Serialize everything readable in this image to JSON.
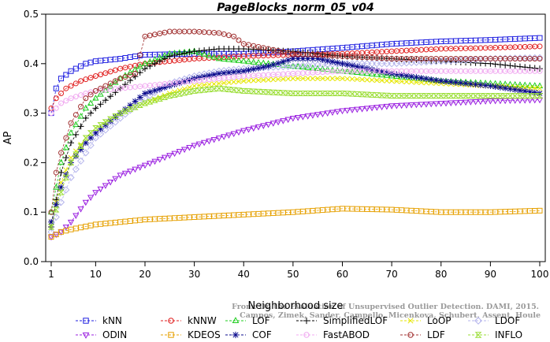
{
  "chart_data": {
    "type": "line",
    "title": "PageBlocks_norm_05_v04",
    "xlabel": "Neighborhood size",
    "ylabel": "AP",
    "xlim": [
      1,
      100
    ],
    "ylim": [
      0,
      0.5
    ],
    "xticks": [
      1,
      10,
      20,
      30,
      40,
      50,
      60,
      70,
      80,
      90,
      100
    ],
    "yticks": [
      0.0,
      0.1,
      0.2,
      0.3,
      0.4,
      0.5
    ],
    "grid": false,
    "legend_position": "bottom",
    "watermark": [
      "From: On the Evaluation of Unsupervised Outlier Detection. DAMI, 2015.",
      "Campos, Zimek, Sander, Campello, Micenkova, Schubert, Assent, Houle"
    ],
    "series": [
      {
        "name": "kNN",
        "color": "#1f1fe0",
        "marker": "square",
        "points": [
          [
            1,
            0.3
          ],
          [
            2,
            0.35
          ],
          [
            3,
            0.37
          ],
          [
            5,
            0.385
          ],
          [
            8,
            0.4
          ],
          [
            10,
            0.405
          ],
          [
            15,
            0.41
          ],
          [
            20,
            0.418
          ],
          [
            30,
            0.42
          ],
          [
            40,
            0.42
          ],
          [
            50,
            0.425
          ],
          [
            60,
            0.432
          ],
          [
            70,
            0.44
          ],
          [
            80,
            0.445
          ],
          [
            90,
            0.448
          ],
          [
            100,
            0.452
          ]
        ]
      },
      {
        "name": "kNNW",
        "color": "#e01f1f",
        "marker": "circle",
        "points": [
          [
            1,
            0.31
          ],
          [
            2,
            0.33
          ],
          [
            4,
            0.35
          ],
          [
            7,
            0.365
          ],
          [
            10,
            0.375
          ],
          [
            15,
            0.39
          ],
          [
            20,
            0.4
          ],
          [
            30,
            0.41
          ],
          [
            40,
            0.415
          ],
          [
            50,
            0.418
          ],
          [
            60,
            0.42
          ],
          [
            70,
            0.425
          ],
          [
            80,
            0.43
          ],
          [
            90,
            0.432
          ],
          [
            100,
            0.435
          ]
        ]
      },
      {
        "name": "LOF",
        "color": "#1fcc1f",
        "marker": "triangle",
        "points": [
          [
            1,
            0.1
          ],
          [
            3,
            0.2
          ],
          [
            5,
            0.26
          ],
          [
            8,
            0.31
          ],
          [
            10,
            0.33
          ],
          [
            15,
            0.37
          ],
          [
            20,
            0.4
          ],
          [
            25,
            0.42
          ],
          [
            30,
            0.425
          ],
          [
            35,
            0.41
          ],
          [
            40,
            0.405
          ],
          [
            50,
            0.395
          ],
          [
            60,
            0.385
          ],
          [
            70,
            0.375
          ],
          [
            80,
            0.365
          ],
          [
            90,
            0.36
          ],
          [
            100,
            0.355
          ]
        ]
      },
      {
        "name": "SimplifiedLOF",
        "color": "#000000",
        "marker": "plus",
        "points": [
          [
            1,
            0.07
          ],
          [
            3,
            0.18
          ],
          [
            5,
            0.24
          ],
          [
            8,
            0.29
          ],
          [
            10,
            0.31
          ],
          [
            15,
            0.35
          ],
          [
            20,
            0.39
          ],
          [
            25,
            0.415
          ],
          [
            30,
            0.425
          ],
          [
            35,
            0.43
          ],
          [
            40,
            0.43
          ],
          [
            50,
            0.425
          ],
          [
            60,
            0.415
          ],
          [
            70,
            0.41
          ],
          [
            80,
            0.405
          ],
          [
            90,
            0.4
          ],
          [
            100,
            0.39
          ]
        ]
      },
      {
        "name": "LoOP",
        "color": "#e6e600",
        "marker": "x",
        "points": [
          [
            1,
            0.08
          ],
          [
            3,
            0.16
          ],
          [
            5,
            0.21
          ],
          [
            8,
            0.25
          ],
          [
            10,
            0.27
          ],
          [
            15,
            0.3
          ],
          [
            20,
            0.32
          ],
          [
            25,
            0.34
          ],
          [
            30,
            0.355
          ],
          [
            35,
            0.36
          ],
          [
            40,
            0.365
          ],
          [
            50,
            0.37
          ],
          [
            60,
            0.37
          ],
          [
            70,
            0.365
          ],
          [
            80,
            0.36
          ],
          [
            90,
            0.355
          ],
          [
            100,
            0.35
          ]
        ]
      },
      {
        "name": "LDOF",
        "color": "#b4b4ec",
        "marker": "diamond",
        "points": [
          [
            1,
            0.06
          ],
          [
            3,
            0.12
          ],
          [
            5,
            0.17
          ],
          [
            8,
            0.22
          ],
          [
            10,
            0.25
          ],
          [
            15,
            0.29
          ],
          [
            20,
            0.33
          ],
          [
            25,
            0.36
          ],
          [
            30,
            0.375
          ],
          [
            35,
            0.385
          ],
          [
            40,
            0.39
          ],
          [
            50,
            0.395
          ],
          [
            60,
            0.4
          ],
          [
            70,
            0.4
          ],
          [
            80,
            0.405
          ],
          [
            90,
            0.41
          ],
          [
            100,
            0.412
          ]
        ]
      },
      {
        "name": "ODIN",
        "color": "#9a1fe0",
        "marker": "triangle-down",
        "points": [
          [
            1,
            0.05
          ],
          [
            3,
            0.06
          ],
          [
            5,
            0.08
          ],
          [
            8,
            0.12
          ],
          [
            10,
            0.14
          ],
          [
            15,
            0.175
          ],
          [
            20,
            0.195
          ],
          [
            25,
            0.215
          ],
          [
            30,
            0.235
          ],
          [
            35,
            0.25
          ],
          [
            40,
            0.265
          ],
          [
            50,
            0.29
          ],
          [
            60,
            0.305
          ],
          [
            70,
            0.315
          ],
          [
            80,
            0.32
          ],
          [
            90,
            0.325
          ],
          [
            100,
            0.327
          ]
        ]
      },
      {
        "name": "KDEOS",
        "color": "#e6a000",
        "marker": "square",
        "points": [
          [
            1,
            0.05
          ],
          [
            3,
            0.06
          ],
          [
            5,
            0.065
          ],
          [
            10,
            0.075
          ],
          [
            20,
            0.085
          ],
          [
            30,
            0.09
          ],
          [
            40,
            0.095
          ],
          [
            50,
            0.1
          ],
          [
            60,
            0.107
          ],
          [
            70,
            0.105
          ],
          [
            80,
            0.1
          ],
          [
            90,
            0.1
          ],
          [
            100,
            0.103
          ]
        ]
      },
      {
        "name": "COF",
        "color": "#0b0b8c",
        "marker": "star",
        "points": [
          [
            1,
            0.08
          ],
          [
            3,
            0.15
          ],
          [
            5,
            0.2
          ],
          [
            8,
            0.24
          ],
          [
            10,
            0.26
          ],
          [
            15,
            0.3
          ],
          [
            20,
            0.34
          ],
          [
            25,
            0.355
          ],
          [
            30,
            0.37
          ],
          [
            35,
            0.38
          ],
          [
            40,
            0.385
          ],
          [
            45,
            0.395
          ],
          [
            50,
            0.41
          ],
          [
            55,
            0.41
          ],
          [
            60,
            0.4
          ],
          [
            70,
            0.38
          ],
          [
            80,
            0.365
          ],
          [
            90,
            0.355
          ],
          [
            100,
            0.34
          ]
        ]
      },
      {
        "name": "FastABOD",
        "color": "#f0a8f0",
        "marker": "circle",
        "points": [
          [
            1,
            0.3
          ],
          [
            3,
            0.32
          ],
          [
            5,
            0.33
          ],
          [
            8,
            0.34
          ],
          [
            10,
            0.345
          ],
          [
            15,
            0.35
          ],
          [
            20,
            0.355
          ],
          [
            25,
            0.36
          ],
          [
            30,
            0.365
          ],
          [
            35,
            0.37
          ],
          [
            40,
            0.375
          ],
          [
            50,
            0.38
          ],
          [
            60,
            0.385
          ],
          [
            70,
            0.385
          ],
          [
            80,
            0.385
          ],
          [
            90,
            0.385
          ],
          [
            100,
            0.385
          ]
        ]
      },
      {
        "name": "LDF",
        "color": "#a03030",
        "marker": "circle",
        "points": [
          [
            1,
            0.1
          ],
          [
            2,
            0.18
          ],
          [
            3,
            0.22
          ],
          [
            5,
            0.28
          ],
          [
            8,
            0.33
          ],
          [
            10,
            0.345
          ],
          [
            15,
            0.37
          ],
          [
            18,
            0.38
          ],
          [
            20,
            0.455
          ],
          [
            25,
            0.465
          ],
          [
            30,
            0.465
          ],
          [
            35,
            0.462
          ],
          [
            38,
            0.455
          ],
          [
            40,
            0.44
          ],
          [
            45,
            0.43
          ],
          [
            50,
            0.42
          ],
          [
            60,
            0.415
          ],
          [
            70,
            0.41
          ],
          [
            80,
            0.41
          ],
          [
            90,
            0.41
          ],
          [
            100,
            0.41
          ]
        ]
      },
      {
        "name": "INFLO",
        "color": "#99dd33",
        "marker": "hourglass",
        "points": [
          [
            1,
            0.07
          ],
          [
            3,
            0.14
          ],
          [
            5,
            0.2
          ],
          [
            8,
            0.25
          ],
          [
            10,
            0.27
          ],
          [
            15,
            0.3
          ],
          [
            20,
            0.32
          ],
          [
            25,
            0.335
          ],
          [
            30,
            0.345
          ],
          [
            35,
            0.35
          ],
          [
            40,
            0.345
          ],
          [
            50,
            0.34
          ],
          [
            60,
            0.34
          ],
          [
            70,
            0.335
          ],
          [
            80,
            0.335
          ],
          [
            90,
            0.335
          ],
          [
            100,
            0.335
          ]
        ]
      }
    ]
  }
}
